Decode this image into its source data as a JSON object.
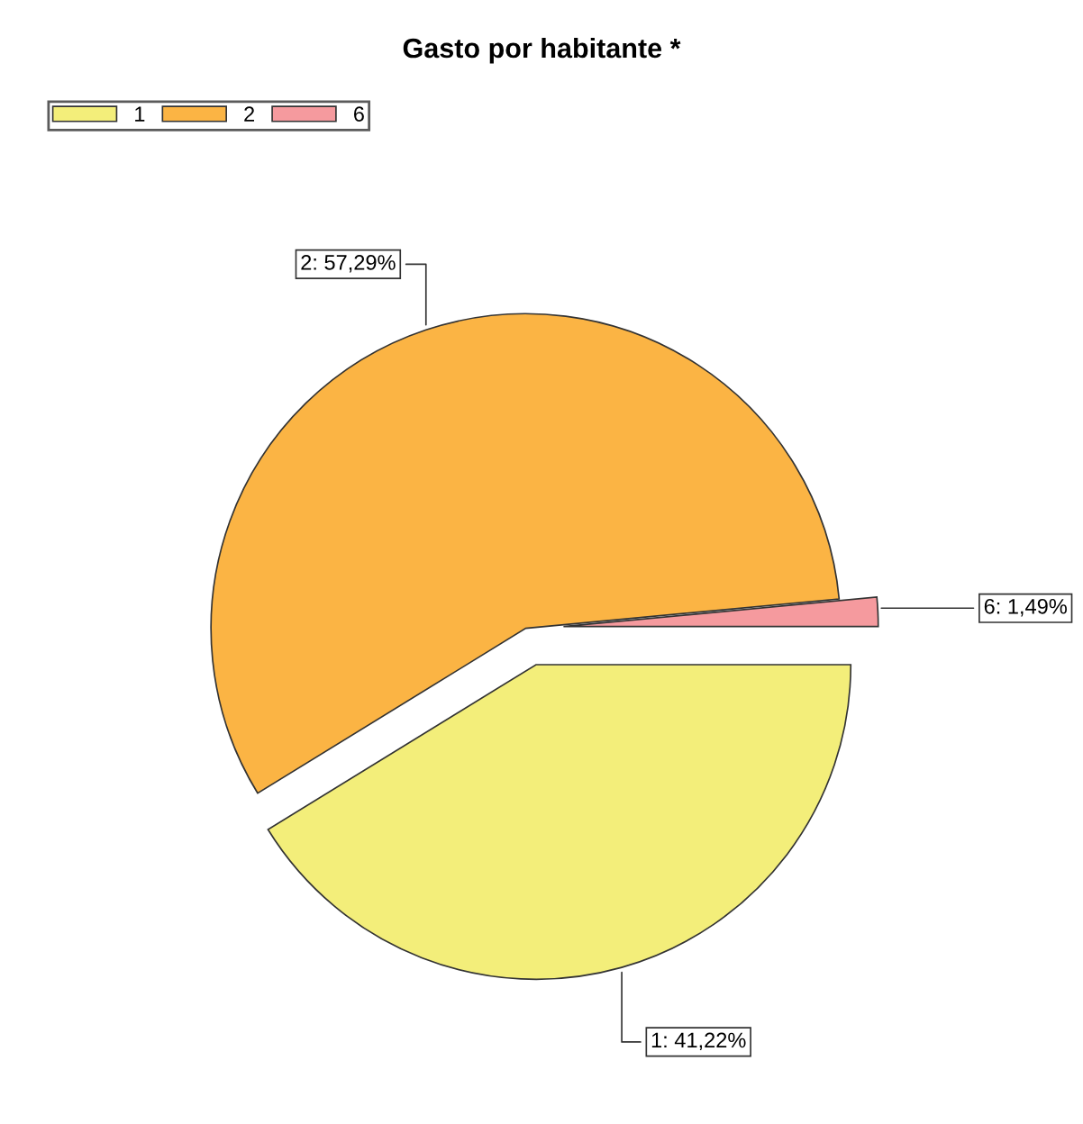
{
  "chart_data": {
    "type": "pie",
    "title": "Gasto por habitante *",
    "categories": [
      "1",
      "2",
      "6"
    ],
    "values": [
      41.22,
      57.29,
      1.49
    ],
    "colors": [
      "#f3ee7a",
      "#fbb444",
      "#f59a9e"
    ],
    "value_labels": [
      "1: 41,22%",
      "2: 57,29%",
      "6: 1,49%"
    ],
    "legend": "top left"
  }
}
